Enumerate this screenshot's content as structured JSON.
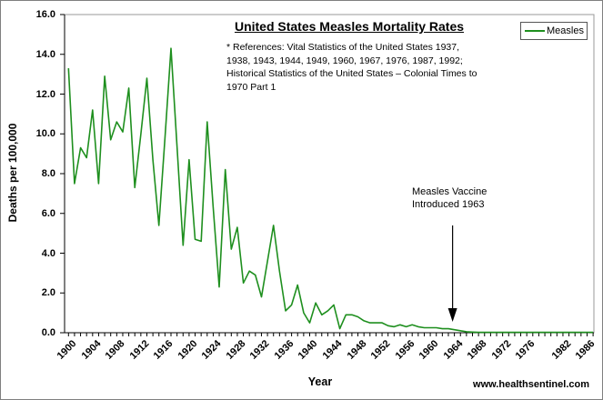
{
  "page": {
    "watermark": "www.healthsentinel.com"
  },
  "chart_data": {
    "type": "line",
    "title": "United States Measles Mortality Rates",
    "references": [
      "* References: Vital Statistics of the United States 1937,",
      "1938, 1943, 1944, 1949, 1960, 1967, 1976, 1987, 1992;",
      "Historical Statistics of the United States – Colonial Times to",
      "1970 Part 1"
    ],
    "xlabel": "Year",
    "ylabel": "Deaths per 100,000",
    "ylim": [
      0,
      16
    ],
    "ytick_labels": [
      "0.0",
      "2.0",
      "4.0",
      "6.0",
      "8.0",
      "10.0",
      "12.0",
      "14.0",
      "16.0"
    ],
    "xtick_labels": [
      "1900",
      "1904",
      "1908",
      "1912",
      "1916",
      "1920",
      "1924",
      "1928",
      "1932",
      "1936",
      "1940",
      "1944",
      "1948",
      "1952",
      "1956",
      "1960",
      "1964",
      "1968",
      "1972",
      "1976",
      "1982",
      "1986"
    ],
    "grid": false,
    "legend": {
      "position": "top-right",
      "entries": [
        {
          "label": "Measles",
          "color": "#1e8f1e"
        }
      ]
    },
    "annotation": {
      "line1": "Measles Vaccine",
      "line2": "Introduced 1963",
      "arrow_year": 1963.7
    },
    "series": [
      {
        "name": "Measles",
        "color": "#1e8f1e",
        "x_start_year": 1900,
        "x_end_year": 1987,
        "values": [
          13.3,
          7.5,
          9.3,
          8.8,
          11.2,
          7.5,
          12.9,
          9.7,
          10.6,
          10.1,
          12.3,
          7.3,
          10.0,
          12.8,
          8.7,
          5.4,
          9.8,
          14.3,
          9.4,
          4.4,
          8.7,
          4.7,
          4.6,
          10.6,
          6.3,
          2.3,
          8.2,
          4.2,
          5.3,
          2.5,
          3.1,
          2.9,
          1.8,
          3.6,
          5.4,
          3.1,
          1.1,
          1.4,
          2.4,
          1.0,
          0.5,
          1.5,
          0.9,
          1.1,
          1.4,
          0.2,
          0.9,
          0.9,
          0.8,
          0.6,
          0.5,
          0.5,
          0.5,
          0.35,
          0.3,
          0.4,
          0.3,
          0.4,
          0.3,
          0.25,
          0.25,
          0.25,
          0.2,
          0.2,
          0.15,
          0.1,
          0.05,
          0.03,
          0.02,
          0.02,
          0.02,
          0.02,
          0.02,
          0.02,
          0.02,
          0.02,
          0.02,
          0.02,
          0.02,
          0.02,
          0.02,
          0.02,
          0.02,
          0.02,
          0.02,
          0.02,
          0.02,
          0.02
        ]
      }
    ]
  }
}
